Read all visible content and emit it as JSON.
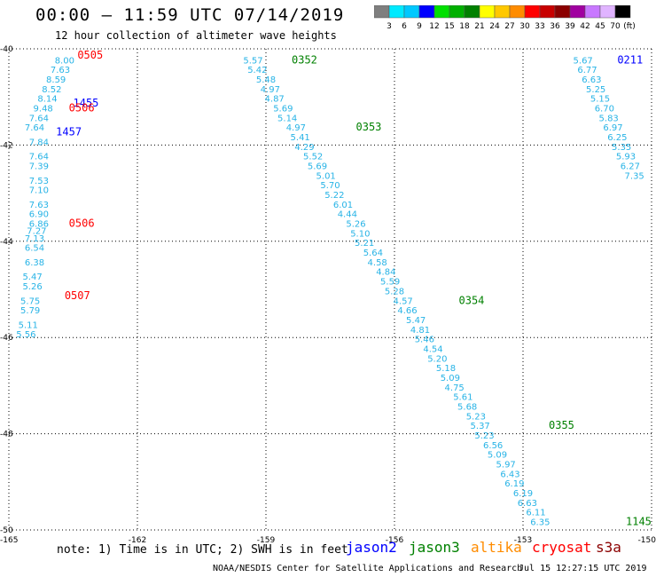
{
  "header": {
    "title": "00:00 – 11:59 UTC 07/14/2019",
    "subtitle": "12 hour collection of altimeter wave heights"
  },
  "colorbar": {
    "unit_label": "(ft)",
    "ticks": [
      "3",
      "6",
      "9",
      "12",
      "15",
      "18",
      "21",
      "24",
      "27",
      "30",
      "33",
      "36",
      "39",
      "42",
      "45",
      "70"
    ],
    "colors": [
      "#7f7f7f",
      "#00eaff",
      "#00c8ff",
      "#0000ff",
      "#00e000",
      "#00b000",
      "#008000",
      "#ffff00",
      "#ffc800",
      "#ff8c00",
      "#ff0000",
      "#c80000",
      "#8b0000",
      "#a000a0",
      "#c878ff",
      "#e0b4ff",
      "#000000"
    ]
  },
  "map": {
    "y_labels": [
      "-40",
      "-42",
      "-44",
      "-46",
      "-48",
      "-50"
    ],
    "x_labels": [
      "-165",
      "-162",
      "-159",
      "-156",
      "-153",
      "-150"
    ],
    "grid": true
  },
  "chart_data": {
    "type": "scatter",
    "xlim": [
      -165,
      -150
    ],
    "ylim": [
      -50,
      -40
    ],
    "unit": "ft",
    "tracks": [
      {
        "name": "track-a-upper",
        "points": [
          {
            "lon": -163.7,
            "lat": -40.3,
            "swh": "8.00"
          },
          {
            "lon": -163.8,
            "lat": -40.5,
            "swh": "7.63"
          },
          {
            "lon": -163.9,
            "lat": -40.7,
            "swh": "8.59"
          },
          {
            "lon": -164.0,
            "lat": -40.9,
            "swh": "8.52"
          },
          {
            "lon": -164.1,
            "lat": -41.1,
            "swh": "8.14"
          },
          {
            "lon": -164.2,
            "lat": -41.3,
            "swh": "9.48"
          },
          {
            "lon": -164.3,
            "lat": -41.5,
            "swh": "7.64"
          },
          {
            "lon": -164.4,
            "lat": -41.7,
            "swh": "7.64"
          }
        ]
      },
      {
        "name": "track-a-lower",
        "points": [
          {
            "lon": -164.3,
            "lat": -42.0,
            "swh": "7.84"
          },
          {
            "lon": -164.3,
            "lat": -42.3,
            "swh": "7.64"
          },
          {
            "lon": -164.3,
            "lat": -42.5,
            "swh": "7.39"
          },
          {
            "lon": -164.3,
            "lat": -42.8,
            "swh": "7.53"
          },
          {
            "lon": -164.3,
            "lat": -43.0,
            "swh": "7.10"
          },
          {
            "lon": -164.3,
            "lat": -43.3,
            "swh": "7.63"
          },
          {
            "lon": -164.3,
            "lat": -43.5,
            "swh": "6.90"
          },
          {
            "lon": -164.3,
            "lat": -43.7,
            "swh": "6.86"
          },
          {
            "lon": -164.35,
            "lat": -43.85,
            "swh": "7.27"
          },
          {
            "lon": -164.4,
            "lat": -44.0,
            "swh": "7.13"
          },
          {
            "lon": -164.4,
            "lat": -44.2,
            "swh": "6.54"
          },
          {
            "lon": -164.4,
            "lat": -44.5,
            "swh": "6.38"
          },
          {
            "lon": -164.45,
            "lat": -44.8,
            "swh": "5.47"
          },
          {
            "lon": -164.45,
            "lat": -45.0,
            "swh": "5.26"
          },
          {
            "lon": -164.5,
            "lat": -45.3,
            "swh": "5.75"
          },
          {
            "lon": -164.5,
            "lat": -45.5,
            "swh": "5.79"
          },
          {
            "lon": -164.55,
            "lat": -45.8,
            "swh": "5.11"
          },
          {
            "lon": -164.6,
            "lat": -46.0,
            "swh": "5.56"
          }
        ]
      },
      {
        "name": "track-b",
        "points": [
          {
            "lon": -159.3,
            "lat": -40.3,
            "swh": "5.57"
          },
          {
            "lon": -159.2,
            "lat": -40.5,
            "swh": "5.42"
          },
          {
            "lon": -159.0,
            "lat": -40.7,
            "swh": "5.48"
          },
          {
            "lon": -158.9,
            "lat": -40.9,
            "swh": "4.97"
          },
          {
            "lon": -158.8,
            "lat": -41.1,
            "swh": "4.87"
          },
          {
            "lon": -158.6,
            "lat": -41.3,
            "swh": "5.69"
          },
          {
            "lon": -158.5,
            "lat": -41.5,
            "swh": "5.14"
          },
          {
            "lon": -158.3,
            "lat": -41.7,
            "swh": "4.97"
          },
          {
            "lon": -158.2,
            "lat": -41.9,
            "swh": "5.41"
          },
          {
            "lon": -158.1,
            "lat": -42.1,
            "swh": "4.29"
          },
          {
            "lon": -157.9,
            "lat": -42.3,
            "swh": "5.52"
          },
          {
            "lon": -157.8,
            "lat": -42.5,
            "swh": "5.69"
          },
          {
            "lon": -157.6,
            "lat": -42.7,
            "swh": "5.01"
          },
          {
            "lon": -157.5,
            "lat": -42.9,
            "swh": "5.70"
          },
          {
            "lon": -157.4,
            "lat": -43.1,
            "swh": "5.22"
          },
          {
            "lon": -157.2,
            "lat": -43.3,
            "swh": "6.01"
          },
          {
            "lon": -157.1,
            "lat": -43.5,
            "swh": "4.44"
          },
          {
            "lon": -156.9,
            "lat": -43.7,
            "swh": "5.26"
          },
          {
            "lon": -156.8,
            "lat": -43.9,
            "swh": "5.10"
          },
          {
            "lon": -156.7,
            "lat": -44.1,
            "swh": "5.21"
          },
          {
            "lon": -156.5,
            "lat": -44.3,
            "swh": "5.64"
          },
          {
            "lon": -156.4,
            "lat": -44.5,
            "swh": "4.58"
          },
          {
            "lon": -156.2,
            "lat": -44.7,
            "swh": "4.84"
          },
          {
            "lon": -156.1,
            "lat": -44.9,
            "swh": "5.59"
          },
          {
            "lon": -156.0,
            "lat": -45.1,
            "swh": "5.28"
          },
          {
            "lon": -155.8,
            "lat": -45.3,
            "swh": "4.57"
          },
          {
            "lon": -155.7,
            "lat": -45.5,
            "swh": "4.66"
          },
          {
            "lon": -155.5,
            "lat": -45.7,
            "swh": "5.47"
          },
          {
            "lon": -155.4,
            "lat": -45.9,
            "swh": "4.81"
          },
          {
            "lon": -155.3,
            "lat": -46.1,
            "swh": "5.46"
          },
          {
            "lon": -155.1,
            "lat": -46.3,
            "swh": "4.54"
          },
          {
            "lon": -155.0,
            "lat": -46.5,
            "swh": "5.20"
          },
          {
            "lon": -154.8,
            "lat": -46.7,
            "swh": "5.18"
          },
          {
            "lon": -154.7,
            "lat": -46.9,
            "swh": "5.09"
          },
          {
            "lon": -154.6,
            "lat": -47.1,
            "swh": "4.75"
          },
          {
            "lon": -154.4,
            "lat": -47.3,
            "swh": "5.61"
          },
          {
            "lon": -154.3,
            "lat": -47.5,
            "swh": "5.68"
          },
          {
            "lon": -154.1,
            "lat": -47.7,
            "swh": "5.23"
          },
          {
            "lon": -154.0,
            "lat": -47.9,
            "swh": "5.37"
          },
          {
            "lon": -153.9,
            "lat": -48.1,
            "swh": "5.23"
          },
          {
            "lon": -153.7,
            "lat": -48.3,
            "swh": "6.56"
          },
          {
            "lon": -153.6,
            "lat": -48.5,
            "swh": "5.09"
          },
          {
            "lon": -153.4,
            "lat": -48.7,
            "swh": "5.97"
          },
          {
            "lon": -153.3,
            "lat": -48.9,
            "swh": "6.43"
          },
          {
            "lon": -153.2,
            "lat": -49.1,
            "swh": "6.19"
          },
          {
            "lon": -153.0,
            "lat": -49.3,
            "swh": "6.19"
          },
          {
            "lon": -152.9,
            "lat": -49.5,
            "swh": "6.63"
          },
          {
            "lon": -152.7,
            "lat": -49.7,
            "swh": "6.11"
          },
          {
            "lon": -152.6,
            "lat": -49.9,
            "swh": "6.35"
          }
        ]
      },
      {
        "name": "track-c",
        "points": [
          {
            "lon": -151.6,
            "lat": -40.3,
            "swh": "5.67"
          },
          {
            "lon": -151.5,
            "lat": -40.5,
            "swh": "6.77"
          },
          {
            "lon": -151.4,
            "lat": -40.7,
            "swh": "6.63"
          },
          {
            "lon": -151.3,
            "lat": -40.9,
            "swh": "5.25"
          },
          {
            "lon": -151.2,
            "lat": -41.1,
            "swh": "5.15"
          },
          {
            "lon": -151.1,
            "lat": -41.3,
            "swh": "6.70"
          },
          {
            "lon": -151.0,
            "lat": -41.5,
            "swh": "5.83"
          },
          {
            "lon": -150.9,
            "lat": -41.7,
            "swh": "6.97"
          },
          {
            "lon": -150.8,
            "lat": -41.9,
            "swh": "6.25"
          },
          {
            "lon": -150.7,
            "lat": -42.1,
            "swh": "5.35"
          },
          {
            "lon": -150.6,
            "lat": -42.3,
            "swh": "5.93"
          },
          {
            "lon": -150.5,
            "lat": -42.5,
            "swh": "6.27"
          },
          {
            "lon": -150.4,
            "lat": -42.7,
            "swh": "7.35"
          }
        ]
      }
    ],
    "time_labels": [
      {
        "text": "0505",
        "lon": -163.4,
        "lat": -40.2,
        "mission": "cryosat"
      },
      {
        "text": "1455",
        "lon": -163.5,
        "lat": -41.2,
        "mission": "jason2"
      },
      {
        "text": "0506",
        "lon": -163.6,
        "lat": -41.3,
        "mission": "cryosat"
      },
      {
        "text": "1457",
        "lon": -163.9,
        "lat": -41.8,
        "mission": "jason2"
      },
      {
        "text": "0506",
        "lon": -163.6,
        "lat": -43.7,
        "mission": "cryosat"
      },
      {
        "text": "0507",
        "lon": -163.7,
        "lat": -45.2,
        "mission": "cryosat"
      },
      {
        "text": "0352",
        "lon": -158.4,
        "lat": -40.3,
        "mission": "jason3"
      },
      {
        "text": "0353",
        "lon": -156.9,
        "lat": -41.7,
        "mission": "jason3"
      },
      {
        "text": "0354",
        "lon": -154.5,
        "lat": -45.3,
        "mission": "jason3"
      },
      {
        "text": "0355",
        "lon": -152.4,
        "lat": -47.9,
        "mission": "jason3"
      },
      {
        "text": "0211",
        "lon": -150.8,
        "lat": -40.3,
        "mission": "jason2"
      },
      {
        "text": "1145",
        "lon": -150.6,
        "lat": -49.9,
        "mission": "jason3"
      }
    ]
  },
  "footer": {
    "note": "note: 1) Time is in UTC; 2) SWH is in feet",
    "missions": [
      {
        "label": "jason2",
        "color": "#0000ff"
      },
      {
        "label": "jason3",
        "color": "#008000"
      },
      {
        "label": "altika",
        "color": "#ff8c00"
      },
      {
        "label": "cryosat",
        "color": "#ff0000"
      },
      {
        "label": "s3a",
        "color": "#8b0000"
      }
    ],
    "credit": "NOAA/NESDIS Center for Satellite Applications and Research",
    "timestamp": "Jul 15 12:27:15 UTC 2019"
  }
}
